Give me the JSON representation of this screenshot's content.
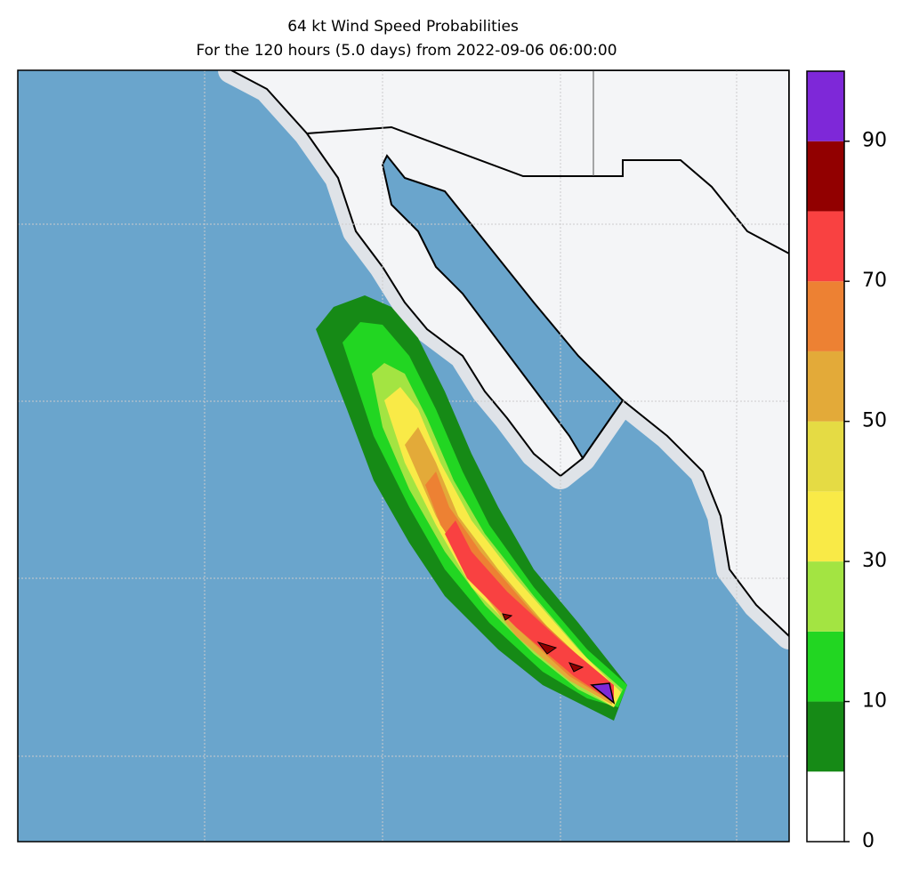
{
  "title": "64 kt Wind Speed Probabilities",
  "subtitle": "For the 120 hours (5.0 days) from 2022-09-06 06:00:00",
  "colorbar": {
    "bounds": [
      0,
      5,
      10,
      20,
      30,
      40,
      50,
      60,
      70,
      80,
      90,
      100
    ],
    "colors": [
      "#ffffff",
      "#168a16",
      "#22d622",
      "#a3e442",
      "#f9ea47",
      "#e5db44",
      "#e3aa39",
      "#ed8133",
      "#f94141",
      "#920000",
      "#7e28d8"
    ],
    "ticks": [
      0,
      10,
      30,
      50,
      70,
      90
    ]
  }
}
